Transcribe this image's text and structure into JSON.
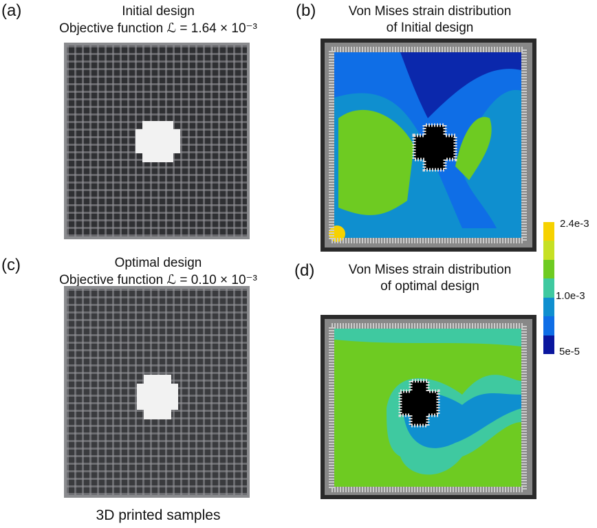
{
  "panels": {
    "a": {
      "label": "(a)",
      "title": "Initial design",
      "objective": "Objective function ℒ = 1.64 × 10⁻³"
    },
    "b": {
      "label": "(b)",
      "title_line1": "Von Mises strain distribution",
      "title_line2": "of Initial design"
    },
    "c": {
      "label": "(c)",
      "title": "Optimal design",
      "objective": "Objective function ℒ = 0.10 × 10⁻³"
    },
    "d": {
      "label": "(d)",
      "title_line1": "Von Mises strain distribution",
      "title_line2": "of optimal design"
    }
  },
  "caption": "3D printed samples",
  "colorbar": {
    "max_label": "2.4e-3",
    "mid_label": "1.0e-3",
    "min_label": "5e-5",
    "colors": [
      "#f6d200",
      "#c6e024",
      "#6ecb22",
      "#3fc9a0",
      "#0f8fcf",
      "#0f6ee6",
      "#0a169e"
    ]
  }
}
